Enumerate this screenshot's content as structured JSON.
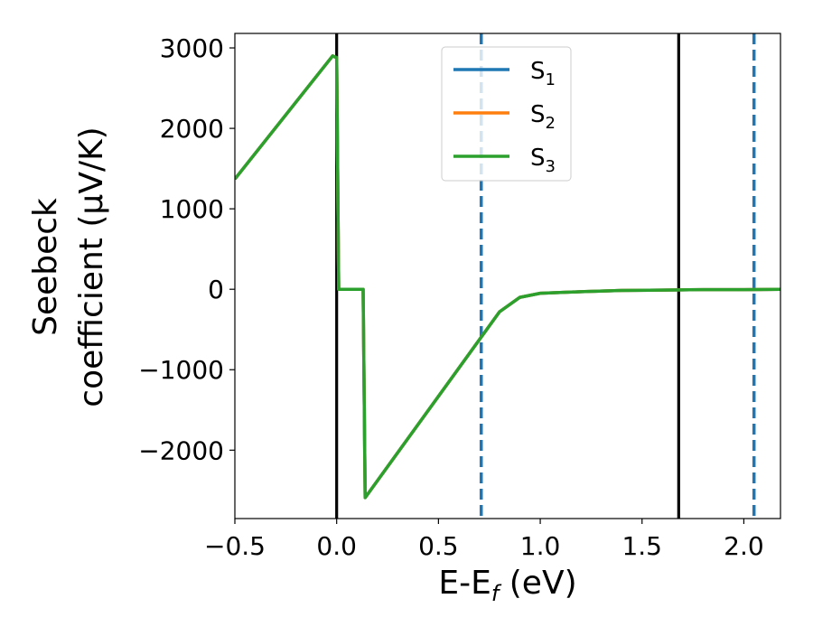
{
  "chart_data": {
    "type": "line",
    "xlabel": "E-E",
    "xlabel_sub": "f",
    "xlabel_unit": " (eV)",
    "ylabel_line1": "Seebeck",
    "ylabel_line2": "coefficient  (μV/K)",
    "xlim": [
      -0.5,
      2.18
    ],
    "ylim": [
      -2850,
      3180
    ],
    "xticks": [
      -0.5,
      0.0,
      0.5,
      1.0,
      1.5,
      2.0
    ],
    "xtick_labels": [
      "−0.5",
      "0.0",
      "0.5",
      "1.0",
      "1.5",
      "2.0"
    ],
    "yticks": [
      -2000,
      -1000,
      0,
      1000,
      2000,
      3000
    ],
    "ytick_labels": [
      "−2000",
      "−1000",
      "0",
      "1000",
      "2000",
      "3000"
    ],
    "grid": false,
    "legend_position": "top-center",
    "series": [
      {
        "name": "S",
        "subscript": "1",
        "color": "#1f77b4",
        "x": [
          -0.5,
          -0.02,
          0.0,
          0.01,
          0.02,
          0.13,
          0.14,
          0.8,
          0.9,
          1.0,
          1.2,
          1.4,
          1.6,
          1.8,
          2.0,
          2.18
        ],
        "y": [
          1370,
          2900,
          2880,
          0,
          0,
          0,
          -2590,
          -280,
          -100,
          -50,
          -30,
          -15,
          -10,
          -5,
          -5,
          0
        ]
      },
      {
        "name": "S",
        "subscript": "2",
        "color": "#ff7f0e",
        "x": [
          -0.5,
          -0.02,
          0.0,
          0.01,
          0.02,
          0.13,
          0.14,
          0.8,
          0.9,
          1.0,
          1.2,
          1.4,
          1.6,
          1.8,
          2.0,
          2.18
        ],
        "y": [
          1370,
          2900,
          2880,
          0,
          0,
          0,
          -2590,
          -280,
          -100,
          -50,
          -30,
          -15,
          -10,
          -5,
          -5,
          0
        ]
      },
      {
        "name": "S",
        "subscript": "3",
        "color": "#2ca02c",
        "x": [
          -0.5,
          -0.02,
          0.0,
          0.01,
          0.02,
          0.13,
          0.14,
          0.8,
          0.9,
          1.0,
          1.2,
          1.4,
          1.6,
          1.8,
          2.0,
          2.18
        ],
        "y": [
          1370,
          2900,
          2880,
          0,
          0,
          0,
          -2590,
          -280,
          -100,
          -50,
          -30,
          -15,
          -10,
          -5,
          -5,
          0
        ]
      }
    ],
    "vlines": [
      {
        "x": 0.0,
        "color": "#000000",
        "style": "solid"
      },
      {
        "x": 1.68,
        "color": "#000000",
        "style": "solid"
      },
      {
        "x": 0.71,
        "color": "#1f77b4",
        "style": "dashed"
      },
      {
        "x": 2.05,
        "color": "#1f77b4",
        "style": "dashed"
      }
    ]
  }
}
